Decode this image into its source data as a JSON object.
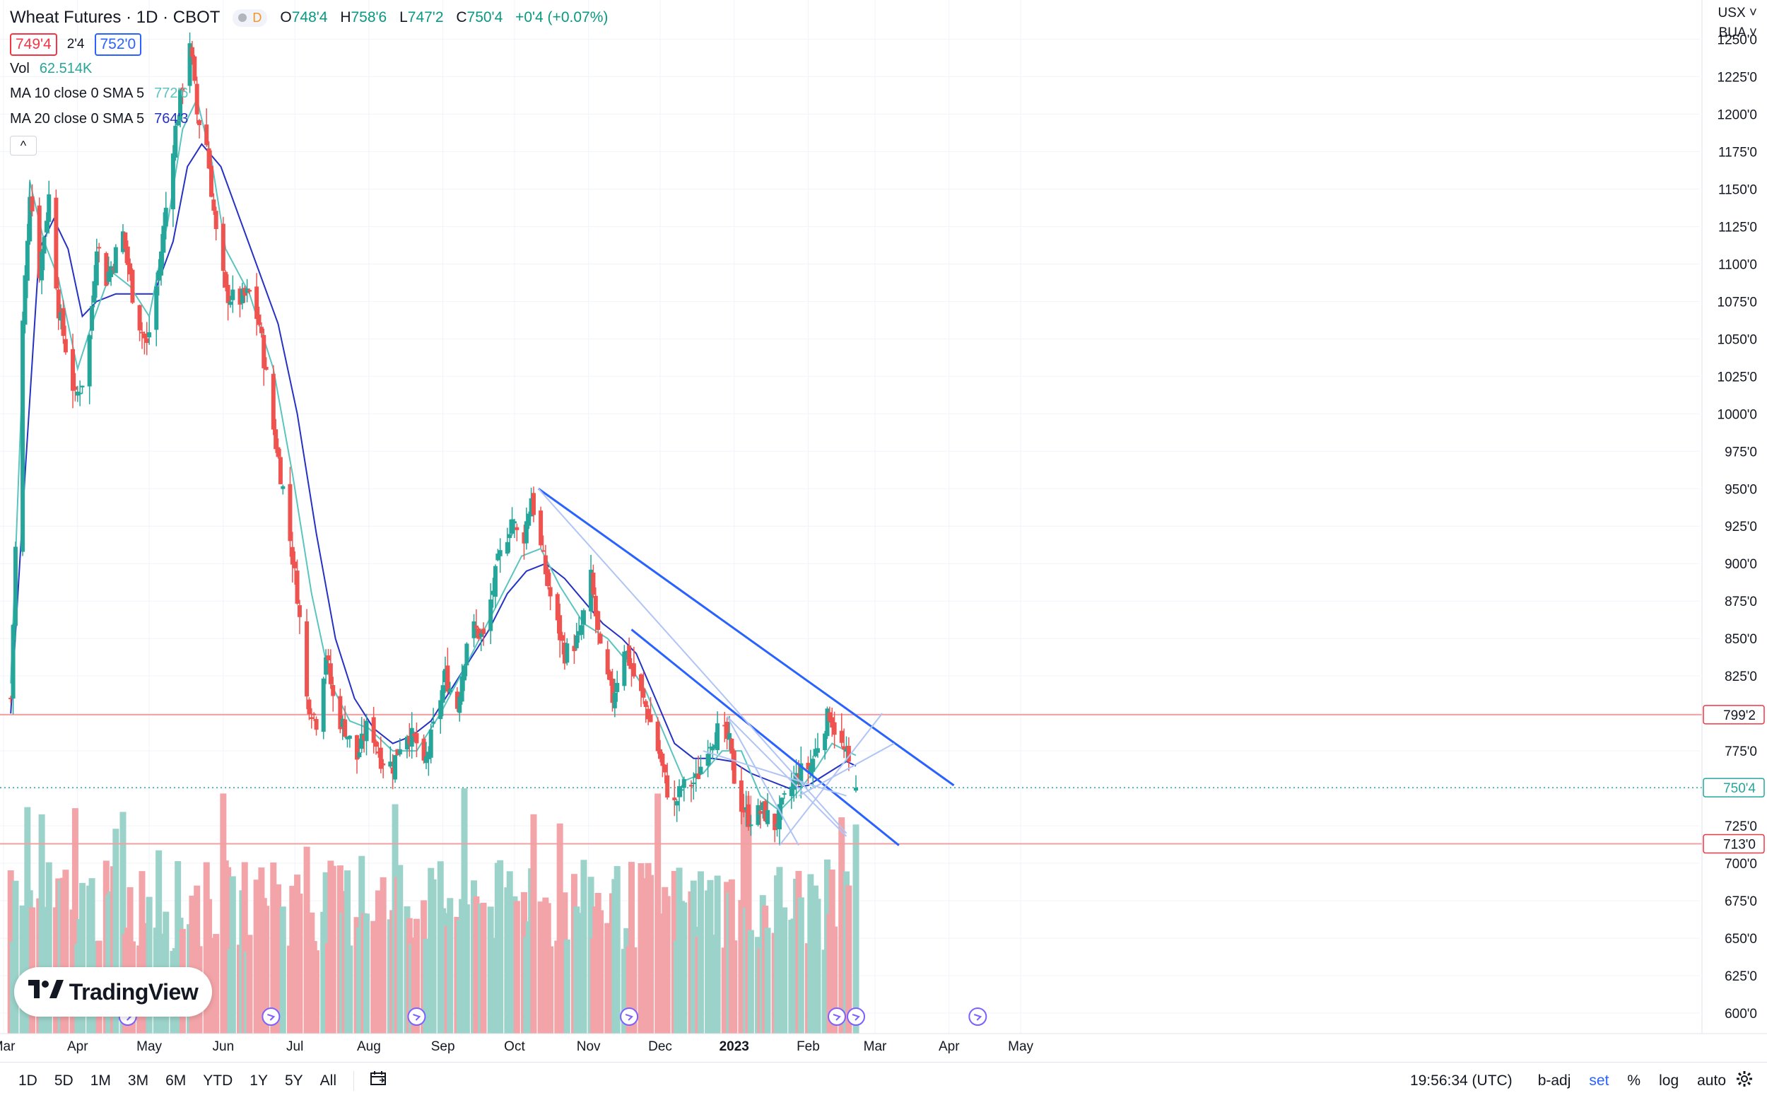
{
  "header": {
    "title": "Wheat Futures · 1D · CBOT",
    "badge": "D",
    "ohlc": {
      "o_label": "O",
      "o": "748'4",
      "h_label": "H",
      "h": "758'6",
      "l_label": "L",
      "l": "747'2",
      "c_label": "C",
      "c": "750'4",
      "change": "+0'4 (+0.07%)"
    },
    "bid": "749'4",
    "spread": "2'4",
    "ask": "752'0"
  },
  "indicators": {
    "vol_label": "Vol",
    "vol_value": "62.514K",
    "ma10_label": "MA 10 close 0 SMA 5",
    "ma10_value": "772'6",
    "ma20_label": "MA 20 close 0 SMA 5",
    "ma20_value": "764'3",
    "collapse_icon": "^"
  },
  "currency": "USX",
  "sub_label": "BUA",
  "colors": {
    "up": "#26a69a",
    "down": "#ef5350",
    "ma10": "#5bc4c0",
    "ma20": "#2531c4",
    "trend": "#2962ff",
    "trend_light": "#b0c4f5",
    "hline": "#f0a0a0"
  },
  "timeframes": [
    "1D",
    "5D",
    "1M",
    "3M",
    "6M",
    "YTD",
    "1Y",
    "5Y",
    "All"
  ],
  "calendar_icon": "calendar-range-icon",
  "clock": "19:56:34 (UTC)",
  "bottom_right": {
    "badj": "b-adj",
    "set": "set",
    "pct": "%",
    "log": "log",
    "auto": "auto"
  },
  "logo_text": "TradingView",
  "chart_data": {
    "type": "candlestick",
    "title": "Wheat Futures · 1D · CBOT",
    "y_ticks": [
      "600'0",
      "625'0",
      "650'0",
      "675'0",
      "700'0",
      "725'0",
      "750'0",
      "775'0",
      "800'0",
      "825'0",
      "850'0",
      "875'0",
      "900'0",
      "925'0",
      "950'0",
      "975'0",
      "1000'0",
      "1025'0",
      "1050'0",
      "1075'0",
      "1100'0",
      "1125'0",
      "1150'0",
      "1175'0",
      "1200'0",
      "1225'0",
      "1250'0"
    ],
    "y_range": [
      592,
      1262
    ],
    "x_labels": [
      {
        "label": "Mar",
        "day": -3
      },
      {
        "label": "Apr",
        "day": 28
      },
      {
        "label": "May",
        "day": 58
      },
      {
        "label": "Jun",
        "day": 89
      },
      {
        "label": "Jul",
        "day": 119
      },
      {
        "label": "Aug",
        "day": 150
      },
      {
        "label": "Sep",
        "day": 181
      },
      {
        "label": "Oct",
        "day": 211
      },
      {
        "label": "Nov",
        "day": 242
      },
      {
        "label": "Dec",
        "day": 272
      },
      {
        "label": "2023",
        "day": 303
      },
      {
        "label": "Feb",
        "day": 334
      },
      {
        "label": "Mar",
        "day": 362
      },
      {
        "label": "Apr",
        "day": 393
      },
      {
        "label": "May",
        "day": 423
      }
    ],
    "anchors": [
      {
        "d": 0,
        "c": 810
      },
      {
        "d": 5,
        "c": 1060
      },
      {
        "d": 8,
        "c": 1150
      },
      {
        "d": 12,
        "c": 1095
      },
      {
        "d": 16,
        "c": 1145
      },
      {
        "d": 20,
        "c": 1070
      },
      {
        "d": 27,
        "c": 1010
      },
      {
        "d": 32,
        "c": 1030
      },
      {
        "d": 36,
        "c": 1115
      },
      {
        "d": 40,
        "c": 1090
      },
      {
        "d": 47,
        "c": 1120
      },
      {
        "d": 52,
        "c": 1070
      },
      {
        "d": 57,
        "c": 1045
      },
      {
        "d": 62,
        "c": 1095
      },
      {
        "d": 68,
        "c": 1180
      },
      {
        "d": 72,
        "c": 1220
      },
      {
        "d": 75,
        "c": 1250
      },
      {
        "d": 78,
        "c": 1200
      },
      {
        "d": 82,
        "c": 1180
      },
      {
        "d": 86,
        "c": 1120
      },
      {
        "d": 90,
        "c": 1080
      },
      {
        "d": 95,
        "c": 1075
      },
      {
        "d": 100,
        "c": 1080
      },
      {
        "d": 104,
        "c": 1060
      },
      {
        "d": 110,
        "c": 990
      },
      {
        "d": 115,
        "c": 940
      },
      {
        "d": 120,
        "c": 880
      },
      {
        "d": 124,
        "c": 810
      },
      {
        "d": 128,
        "c": 795
      },
      {
        "d": 132,
        "c": 840
      },
      {
        "d": 136,
        "c": 800
      },
      {
        "d": 140,
        "c": 790
      },
      {
        "d": 145,
        "c": 770
      },
      {
        "d": 150,
        "c": 795
      },
      {
        "d": 155,
        "c": 770
      },
      {
        "d": 160,
        "c": 765
      },
      {
        "d": 165,
        "c": 790
      },
      {
        "d": 170,
        "c": 780
      },
      {
        "d": 172,
        "c": 755
      },
      {
        "d": 177,
        "c": 790
      },
      {
        "d": 182,
        "c": 825
      },
      {
        "d": 187,
        "c": 805
      },
      {
        "d": 192,
        "c": 860
      },
      {
        "d": 198,
        "c": 850
      },
      {
        "d": 204,
        "c": 900
      },
      {
        "d": 210,
        "c": 930
      },
      {
        "d": 214,
        "c": 910
      },
      {
        "d": 218,
        "c": 945
      },
      {
        "d": 222,
        "c": 910
      },
      {
        "d": 227,
        "c": 870
      },
      {
        "d": 232,
        "c": 840
      },
      {
        "d": 238,
        "c": 850
      },
      {
        "d": 243,
        "c": 890
      },
      {
        "d": 247,
        "c": 840
      },
      {
        "d": 252,
        "c": 810
      },
      {
        "d": 257,
        "c": 845
      },
      {
        "d": 262,
        "c": 820
      },
      {
        "d": 267,
        "c": 800
      },
      {
        "d": 272,
        "c": 770
      },
      {
        "d": 277,
        "c": 735
      },
      {
        "d": 281,
        "c": 750
      },
      {
        "d": 287,
        "c": 755
      },
      {
        "d": 292,
        "c": 780
      },
      {
        "d": 297,
        "c": 790
      },
      {
        "d": 301,
        "c": 780
      },
      {
        "d": 304,
        "c": 745
      },
      {
        "d": 309,
        "c": 730
      },
      {
        "d": 315,
        "c": 735
      },
      {
        "d": 320,
        "c": 725
      },
      {
        "d": 325,
        "c": 745
      },
      {
        "d": 330,
        "c": 760
      },
      {
        "d": 335,
        "c": 765
      },
      {
        "d": 340,
        "c": 790
      },
      {
        "d": 343,
        "c": 800
      },
      {
        "d": 346,
        "c": 785
      },
      {
        "d": 350,
        "c": 770
      },
      {
        "d": 354,
        "c": 750
      }
    ],
    "ma10_points": [
      [
        0,
        820
      ],
      [
        8,
        1155
      ],
      [
        14,
        1115
      ],
      [
        20,
        1090
      ],
      [
        28,
        1030
      ],
      [
        34,
        1060
      ],
      [
        42,
        1095
      ],
      [
        50,
        1085
      ],
      [
        58,
        1065
      ],
      [
        66,
        1130
      ],
      [
        72,
        1190
      ],
      [
        78,
        1210
      ],
      [
        84,
        1170
      ],
      [
        90,
        1110
      ],
      [
        100,
        1080
      ],
      [
        110,
        1030
      ],
      [
        118,
        960
      ],
      [
        126,
        880
      ],
      [
        134,
        820
      ],
      [
        142,
        795
      ],
      [
        150,
        790
      ],
      [
        160,
        775
      ],
      [
        170,
        775
      ],
      [
        180,
        800
      ],
      [
        190,
        830
      ],
      [
        198,
        855
      ],
      [
        206,
        880
      ],
      [
        214,
        905
      ],
      [
        222,
        910
      ],
      [
        230,
        885
      ],
      [
        240,
        860
      ],
      [
        250,
        850
      ],
      [
        258,
        835
      ],
      [
        266,
        815
      ],
      [
        274,
        785
      ],
      [
        282,
        755
      ],
      [
        290,
        760
      ],
      [
        298,
        775
      ],
      [
        306,
        775
      ],
      [
        314,
        745
      ],
      [
        322,
        735
      ],
      [
        330,
        748
      ],
      [
        338,
        765
      ],
      [
        344,
        780
      ],
      [
        350,
        775
      ],
      [
        354,
        772
      ]
    ],
    "ma20_points": [
      [
        0,
        800
      ],
      [
        6,
        960
      ],
      [
        12,
        1110
      ],
      [
        18,
        1130
      ],
      [
        24,
        1110
      ],
      [
        30,
        1065
      ],
      [
        36,
        1075
      ],
      [
        44,
        1080
      ],
      [
        52,
        1080
      ],
      [
        60,
        1080
      ],
      [
        68,
        1115
      ],
      [
        74,
        1165
      ],
      [
        80,
        1180
      ],
      [
        88,
        1165
      ],
      [
        96,
        1130
      ],
      [
        104,
        1095
      ],
      [
        112,
        1060
      ],
      [
        120,
        1000
      ],
      [
        128,
        920
      ],
      [
        136,
        850
      ],
      [
        144,
        810
      ],
      [
        152,
        790
      ],
      [
        160,
        780
      ],
      [
        168,
        785
      ],
      [
        176,
        795
      ],
      [
        184,
        815
      ],
      [
        192,
        835
      ],
      [
        200,
        855
      ],
      [
        208,
        880
      ],
      [
        216,
        895
      ],
      [
        224,
        900
      ],
      [
        232,
        890
      ],
      [
        240,
        875
      ],
      [
        248,
        860
      ],
      [
        256,
        850
      ],
      [
        262,
        840
      ],
      [
        270,
        810
      ],
      [
        278,
        780
      ],
      [
        286,
        770
      ],
      [
        294,
        770
      ],
      [
        302,
        768
      ],
      [
        310,
        760
      ],
      [
        318,
        755
      ],
      [
        326,
        750
      ],
      [
        334,
        752
      ],
      [
        342,
        760
      ],
      [
        350,
        768
      ],
      [
        354,
        765
      ]
    ],
    "trendlines": [
      {
        "from": [
          221,
          950
        ],
        "to": [
          395,
          752
        ],
        "style": "strong"
      },
      {
        "from": [
          260,
          856
        ],
        "to": [
          372,
          712
        ],
        "style": "strong"
      },
      {
        "from": [
          221,
          950
        ],
        "to": [
          350,
          720
        ],
        "style": "light"
      },
      {
        "from": [
          300,
          798
        ],
        "to": [
          350,
          718
        ],
        "style": "light"
      },
      {
        "from": [
          300,
          798
        ],
        "to": [
          330,
          712
        ],
        "style": "light"
      },
      {
        "from": [
          290,
          775
        ],
        "to": [
          350,
          745
        ],
        "style": "light"
      },
      {
        "from": [
          322,
          712
        ],
        "to": [
          365,
          800
        ],
        "style": "light"
      },
      {
        "from": [
          330,
          745
        ],
        "to": [
          370,
          780
        ],
        "style": "light"
      }
    ],
    "horizontal_levels": [
      {
        "value": 799.2,
        "label": "799'2"
      },
      {
        "value": 713,
        "label": "713'0"
      }
    ],
    "current_price": {
      "value": 750.5,
      "label": "750'4"
    },
    "event_markers": [
      {
        "day": 49
      },
      {
        "day": 109
      },
      {
        "day": 170
      },
      {
        "day": 259
      },
      {
        "day": 346
      },
      {
        "day": 354
      },
      {
        "day": 405
      }
    ],
    "volume_axis_max_k": 130
  }
}
